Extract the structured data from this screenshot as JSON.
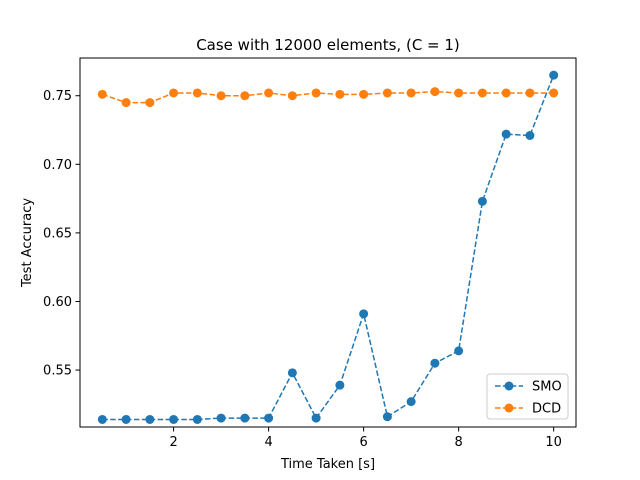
{
  "chart_data": {
    "type": "line",
    "title": "Case with 12000 elements, (C = 1)",
    "xlabel": "Time Taken [s]",
    "ylabel": "Test Accuracy",
    "xlim": [
      0.03,
      10.47
    ],
    "ylim": [
      0.5085,
      0.7775
    ],
    "xticks": [
      2,
      4,
      6,
      8,
      10
    ],
    "yticks": [
      0.55,
      0.6,
      0.65,
      0.7,
      0.75
    ],
    "ytick_labels": [
      "0.55",
      "0.60",
      "0.65",
      "0.70",
      "0.75"
    ],
    "grid": false,
    "legend_position": "lower-right",
    "x": [
      0.5,
      1.0,
      1.5,
      2.0,
      2.5,
      3.0,
      3.5,
      4.0,
      4.5,
      5.0,
      5.5,
      6.0,
      6.5,
      7.0,
      7.5,
      8.0,
      8.5,
      9.0,
      9.5,
      10.0
    ],
    "series": [
      {
        "name": "SMO",
        "color": "#1f77b4",
        "linestyle": "dashed",
        "marker": "circle",
        "values": [
          0.514,
          0.514,
          0.514,
          0.514,
          0.514,
          0.515,
          0.515,
          0.515,
          0.548,
          0.515,
          0.539,
          0.591,
          0.516,
          0.527,
          0.555,
          0.564,
          0.673,
          0.722,
          0.721,
          0.765
        ]
      },
      {
        "name": "DCD",
        "color": "#ff7f0e",
        "linestyle": "dashed",
        "marker": "circle",
        "values": [
          0.751,
          0.745,
          0.745,
          0.752,
          0.752,
          0.75,
          0.75,
          0.752,
          0.75,
          0.752,
          0.751,
          0.751,
          0.752,
          0.752,
          0.753,
          0.752,
          0.752,
          0.752,
          0.752,
          0.752
        ]
      }
    ]
  }
}
